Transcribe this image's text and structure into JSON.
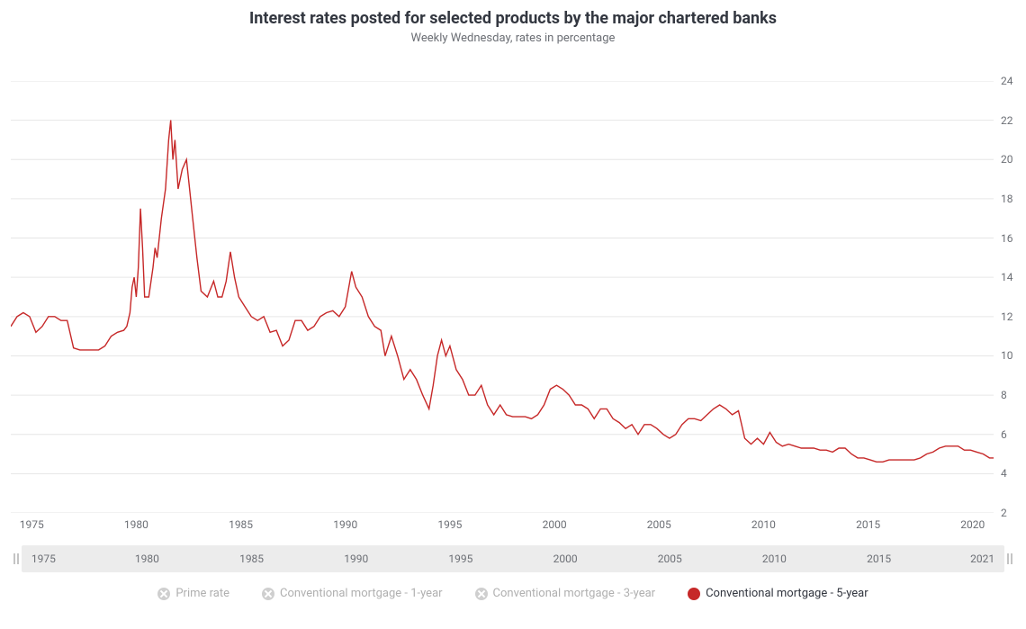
{
  "title": "Interest rates posted for selected products by the major chartered banks",
  "subtitle": "Weekly Wednesday, rates in percentage",
  "title_fontsize": 18,
  "title_color": "#333740",
  "subtitle_fontsize": 13,
  "subtitle_color": "#6c6f75",
  "chart": {
    "type": "line",
    "background_color": "#ffffff",
    "grid_color": "#e6e6e6",
    "axis_label_color": "#6c6f75",
    "axis_label_fontsize": 12,
    "line_color": "#c62828",
    "line_width": 1.4,
    "xlim": [
      1974,
      2021
    ],
    "ylim": [
      2,
      24
    ],
    "x_ticks": [
      1975,
      1980,
      1985,
      1990,
      1995,
      2000,
      2005,
      2010,
      2015,
      2020
    ],
    "y_ticks": [
      2,
      4,
      6,
      8,
      10,
      12,
      14,
      16,
      18,
      20,
      22,
      24
    ],
    "y_axis_side": "right",
    "series_name": "Conventional mortgage - 5-year",
    "data": [
      {
        "x": 1974.0,
        "y": 11.5
      },
      {
        "x": 1974.3,
        "y": 12.0
      },
      {
        "x": 1974.6,
        "y": 12.2
      },
      {
        "x": 1974.9,
        "y": 12.0
      },
      {
        "x": 1975.2,
        "y": 11.2
      },
      {
        "x": 1975.5,
        "y": 11.5
      },
      {
        "x": 1975.8,
        "y": 12.0
      },
      {
        "x": 1976.1,
        "y": 12.0
      },
      {
        "x": 1976.4,
        "y": 11.8
      },
      {
        "x": 1976.7,
        "y": 11.8
      },
      {
        "x": 1977.0,
        "y": 10.4
      },
      {
        "x": 1977.3,
        "y": 10.3
      },
      {
        "x": 1977.6,
        "y": 10.3
      },
      {
        "x": 1977.9,
        "y": 10.3
      },
      {
        "x": 1978.2,
        "y": 10.3
      },
      {
        "x": 1978.5,
        "y": 10.5
      },
      {
        "x": 1978.8,
        "y": 11.0
      },
      {
        "x": 1979.1,
        "y": 11.2
      },
      {
        "x": 1979.4,
        "y": 11.3
      },
      {
        "x": 1979.55,
        "y": 11.5
      },
      {
        "x": 1979.7,
        "y": 12.2
      },
      {
        "x": 1979.8,
        "y": 13.5
      },
      {
        "x": 1979.9,
        "y": 14.0
      },
      {
        "x": 1980.0,
        "y": 13.0
      },
      {
        "x": 1980.1,
        "y": 14.5
      },
      {
        "x": 1980.2,
        "y": 17.5
      },
      {
        "x": 1980.3,
        "y": 15.5
      },
      {
        "x": 1980.4,
        "y": 13.0
      },
      {
        "x": 1980.6,
        "y": 13.0
      },
      {
        "x": 1980.8,
        "y": 14.5
      },
      {
        "x": 1980.9,
        "y": 15.5
      },
      {
        "x": 1981.0,
        "y": 15.0
      },
      {
        "x": 1981.2,
        "y": 17.0
      },
      {
        "x": 1981.4,
        "y": 18.5
      },
      {
        "x": 1981.55,
        "y": 21.0
      },
      {
        "x": 1981.65,
        "y": 22.0
      },
      {
        "x": 1981.75,
        "y": 20.0
      },
      {
        "x": 1981.85,
        "y": 21.0
      },
      {
        "x": 1982.0,
        "y": 18.5
      },
      {
        "x": 1982.2,
        "y": 19.5
      },
      {
        "x": 1982.4,
        "y": 20.0
      },
      {
        "x": 1982.5,
        "y": 19.0
      },
      {
        "x": 1982.7,
        "y": 17.0
      },
      {
        "x": 1982.9,
        "y": 15.0
      },
      {
        "x": 1983.1,
        "y": 13.3
      },
      {
        "x": 1983.4,
        "y": 13.0
      },
      {
        "x": 1983.7,
        "y": 13.8
      },
      {
        "x": 1983.9,
        "y": 13.0
      },
      {
        "x": 1984.1,
        "y": 13.0
      },
      {
        "x": 1984.3,
        "y": 13.8
      },
      {
        "x": 1984.5,
        "y": 15.3
      },
      {
        "x": 1984.7,
        "y": 14.0
      },
      {
        "x": 1984.9,
        "y": 13.0
      },
      {
        "x": 1985.2,
        "y": 12.5
      },
      {
        "x": 1985.5,
        "y": 12.0
      },
      {
        "x": 1985.8,
        "y": 11.8
      },
      {
        "x": 1986.1,
        "y": 12.0
      },
      {
        "x": 1986.4,
        "y": 11.2
      },
      {
        "x": 1986.7,
        "y": 11.3
      },
      {
        "x": 1987.0,
        "y": 10.5
      },
      {
        "x": 1987.3,
        "y": 10.8
      },
      {
        "x": 1987.6,
        "y": 11.8
      },
      {
        "x": 1987.9,
        "y": 11.8
      },
      {
        "x": 1988.2,
        "y": 11.3
      },
      {
        "x": 1988.5,
        "y": 11.5
      },
      {
        "x": 1988.8,
        "y": 12.0
      },
      {
        "x": 1989.1,
        "y": 12.2
      },
      {
        "x": 1989.4,
        "y": 12.3
      },
      {
        "x": 1989.7,
        "y": 12.0
      },
      {
        "x": 1990.0,
        "y": 12.5
      },
      {
        "x": 1990.3,
        "y": 14.3
      },
      {
        "x": 1990.5,
        "y": 13.5
      },
      {
        "x": 1990.8,
        "y": 13.0
      },
      {
        "x": 1991.1,
        "y": 12.0
      },
      {
        "x": 1991.4,
        "y": 11.5
      },
      {
        "x": 1991.7,
        "y": 11.3
      },
      {
        "x": 1991.9,
        "y": 10.0
      },
      {
        "x": 1992.2,
        "y": 11.0
      },
      {
        "x": 1992.5,
        "y": 10.0
      },
      {
        "x": 1992.8,
        "y": 8.8
      },
      {
        "x": 1993.1,
        "y": 9.3
      },
      {
        "x": 1993.4,
        "y": 8.8
      },
      {
        "x": 1993.7,
        "y": 8.0
      },
      {
        "x": 1994.0,
        "y": 7.3
      },
      {
        "x": 1994.2,
        "y": 8.5
      },
      {
        "x": 1994.4,
        "y": 10.0
      },
      {
        "x": 1994.6,
        "y": 10.8
      },
      {
        "x": 1994.8,
        "y": 10.0
      },
      {
        "x": 1995.0,
        "y": 10.5
      },
      {
        "x": 1995.3,
        "y": 9.3
      },
      {
        "x": 1995.6,
        "y": 8.8
      },
      {
        "x": 1995.9,
        "y": 8.0
      },
      {
        "x": 1996.2,
        "y": 8.0
      },
      {
        "x": 1996.5,
        "y": 8.5
      },
      {
        "x": 1996.8,
        "y": 7.5
      },
      {
        "x": 1997.1,
        "y": 7.0
      },
      {
        "x": 1997.4,
        "y": 7.5
      },
      {
        "x": 1997.7,
        "y": 7.0
      },
      {
        "x": 1998.0,
        "y": 6.9
      },
      {
        "x": 1998.3,
        "y": 6.9
      },
      {
        "x": 1998.6,
        "y": 6.9
      },
      {
        "x": 1998.9,
        "y": 6.8
      },
      {
        "x": 1999.2,
        "y": 7.0
      },
      {
        "x": 1999.5,
        "y": 7.5
      },
      {
        "x": 1999.8,
        "y": 8.3
      },
      {
        "x": 2000.1,
        "y": 8.5
      },
      {
        "x": 2000.4,
        "y": 8.3
      },
      {
        "x": 2000.7,
        "y": 8.0
      },
      {
        "x": 2001.0,
        "y": 7.5
      },
      {
        "x": 2001.3,
        "y": 7.5
      },
      {
        "x": 2001.6,
        "y": 7.3
      },
      {
        "x": 2001.9,
        "y": 6.8
      },
      {
        "x": 2002.2,
        "y": 7.3
      },
      {
        "x": 2002.5,
        "y": 7.3
      },
      {
        "x": 2002.8,
        "y": 6.8
      },
      {
        "x": 2003.1,
        "y": 6.6
      },
      {
        "x": 2003.4,
        "y": 6.3
      },
      {
        "x": 2003.7,
        "y": 6.5
      },
      {
        "x": 2004.0,
        "y": 6.0
      },
      {
        "x": 2004.3,
        "y": 6.5
      },
      {
        "x": 2004.6,
        "y": 6.5
      },
      {
        "x": 2004.9,
        "y": 6.3
      },
      {
        "x": 2005.2,
        "y": 6.0
      },
      {
        "x": 2005.5,
        "y": 5.8
      },
      {
        "x": 2005.8,
        "y": 6.0
      },
      {
        "x": 2006.1,
        "y": 6.5
      },
      {
        "x": 2006.4,
        "y": 6.8
      },
      {
        "x": 2006.7,
        "y": 6.8
      },
      {
        "x": 2007.0,
        "y": 6.7
      },
      {
        "x": 2007.3,
        "y": 7.0
      },
      {
        "x": 2007.6,
        "y": 7.3
      },
      {
        "x": 2007.9,
        "y": 7.5
      },
      {
        "x": 2008.2,
        "y": 7.3
      },
      {
        "x": 2008.5,
        "y": 7.0
      },
      {
        "x": 2008.8,
        "y": 7.2
      },
      {
        "x": 2009.1,
        "y": 5.8
      },
      {
        "x": 2009.4,
        "y": 5.5
      },
      {
        "x": 2009.7,
        "y": 5.8
      },
      {
        "x": 2010.0,
        "y": 5.5
      },
      {
        "x": 2010.3,
        "y": 6.1
      },
      {
        "x": 2010.6,
        "y": 5.6
      },
      {
        "x": 2010.9,
        "y": 5.4
      },
      {
        "x": 2011.2,
        "y": 5.5
      },
      {
        "x": 2011.5,
        "y": 5.4
      },
      {
        "x": 2011.8,
        "y": 5.3
      },
      {
        "x": 2012.1,
        "y": 5.3
      },
      {
        "x": 2012.4,
        "y": 5.3
      },
      {
        "x": 2012.7,
        "y": 5.2
      },
      {
        "x": 2013.0,
        "y": 5.2
      },
      {
        "x": 2013.3,
        "y": 5.1
      },
      {
        "x": 2013.6,
        "y": 5.3
      },
      {
        "x": 2013.9,
        "y": 5.3
      },
      {
        "x": 2014.2,
        "y": 5.0
      },
      {
        "x": 2014.5,
        "y": 4.8
      },
      {
        "x": 2014.8,
        "y": 4.8
      },
      {
        "x": 2015.1,
        "y": 4.7
      },
      {
        "x": 2015.4,
        "y": 4.6
      },
      {
        "x": 2015.7,
        "y": 4.6
      },
      {
        "x": 2016.0,
        "y": 4.7
      },
      {
        "x": 2016.3,
        "y": 4.7
      },
      {
        "x": 2016.6,
        "y": 4.7
      },
      {
        "x": 2016.9,
        "y": 4.7
      },
      {
        "x": 2017.2,
        "y": 4.7
      },
      {
        "x": 2017.5,
        "y": 4.8
      },
      {
        "x": 2017.8,
        "y": 5.0
      },
      {
        "x": 2018.1,
        "y": 5.1
      },
      {
        "x": 2018.4,
        "y": 5.3
      },
      {
        "x": 2018.7,
        "y": 5.4
      },
      {
        "x": 2019.0,
        "y": 5.4
      },
      {
        "x": 2019.3,
        "y": 5.4
      },
      {
        "x": 2019.6,
        "y": 5.2
      },
      {
        "x": 2019.9,
        "y": 5.2
      },
      {
        "x": 2020.2,
        "y": 5.1
      },
      {
        "x": 2020.5,
        "y": 5.0
      },
      {
        "x": 2020.8,
        "y": 4.8
      },
      {
        "x": 2021.0,
        "y": 4.8
      }
    ]
  },
  "navigator": {
    "background": "#ececec",
    "handle_color": "#b0b0b0",
    "label_color": "#6c6f75",
    "start_label": "1975",
    "end_label": "2021",
    "ticks": [
      1980,
      1985,
      1990,
      1995,
      2000,
      2005,
      2010,
      2015
    ]
  },
  "legend": {
    "items": [
      {
        "label": "Prime rate",
        "active": false,
        "color": "#cfcfcf"
      },
      {
        "label": "Conventional mortgage - 1-year",
        "active": false,
        "color": "#cfcfcf"
      },
      {
        "label": "Conventional mortgage - 3-year",
        "active": false,
        "color": "#cfcfcf"
      },
      {
        "label": "Conventional mortgage - 5-year",
        "active": true,
        "color": "#c62828"
      }
    ]
  }
}
